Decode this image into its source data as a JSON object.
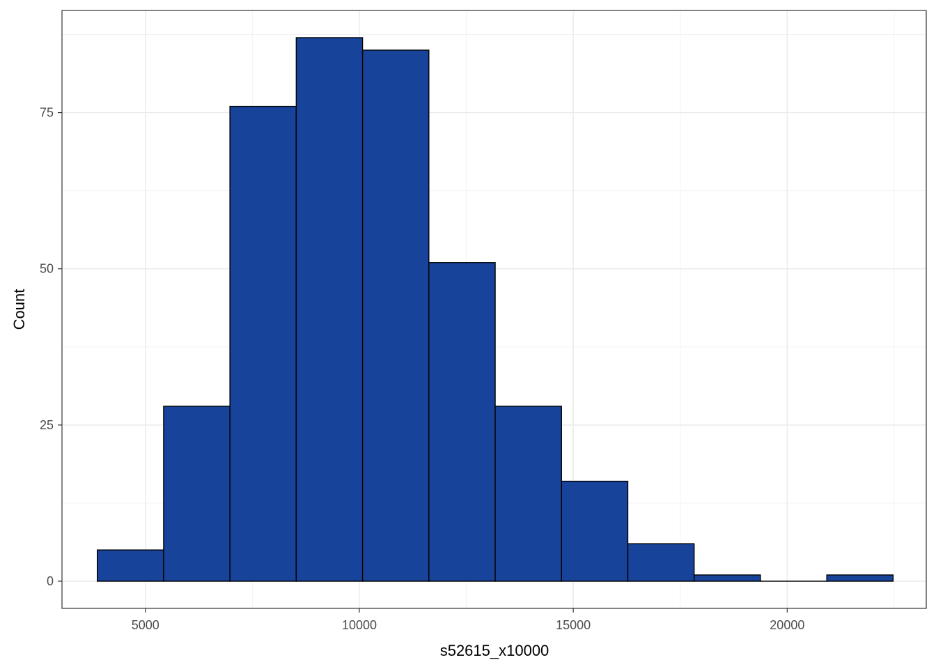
{
  "chart_data": {
    "type": "bar",
    "subtype": "histogram",
    "xlabel": "s52615_x10000",
    "ylabel": "Count",
    "xlim": [
      3050,
      23250
    ],
    "ylim": [
      -4.35,
      91.35
    ],
    "x_ticks": [
      5000,
      10000,
      15000,
      20000
    ],
    "y_ticks": [
      0,
      25,
      50,
      75
    ],
    "grid": true,
    "bins": [
      {
        "x0": 3875,
        "x1": 5425,
        "count": 5
      },
      {
        "x0": 5425,
        "x1": 6975,
        "count": 28
      },
      {
        "x0": 6975,
        "x1": 8525,
        "count": 76
      },
      {
        "x0": 8525,
        "x1": 10075,
        "count": 87
      },
      {
        "x0": 10075,
        "x1": 11625,
        "count": 85
      },
      {
        "x0": 11625,
        "x1": 13175,
        "count": 51
      },
      {
        "x0": 13175,
        "x1": 14725,
        "count": 28
      },
      {
        "x0": 14725,
        "x1": 16275,
        "count": 16
      },
      {
        "x0": 16275,
        "x1": 17825,
        "count": 6
      },
      {
        "x0": 17825,
        "x1": 19375,
        "count": 1
      },
      {
        "x0": 19375,
        "x1": 20925,
        "count": 0
      },
      {
        "x0": 20925,
        "x1": 22475,
        "count": 1
      }
    ],
    "colors": {
      "bar_fill": "#18439A",
      "bar_stroke": "#000000",
      "grid_major": "#ebebeb",
      "grid_minor": "#f2f2f2",
      "panel_border": "#333333"
    }
  }
}
